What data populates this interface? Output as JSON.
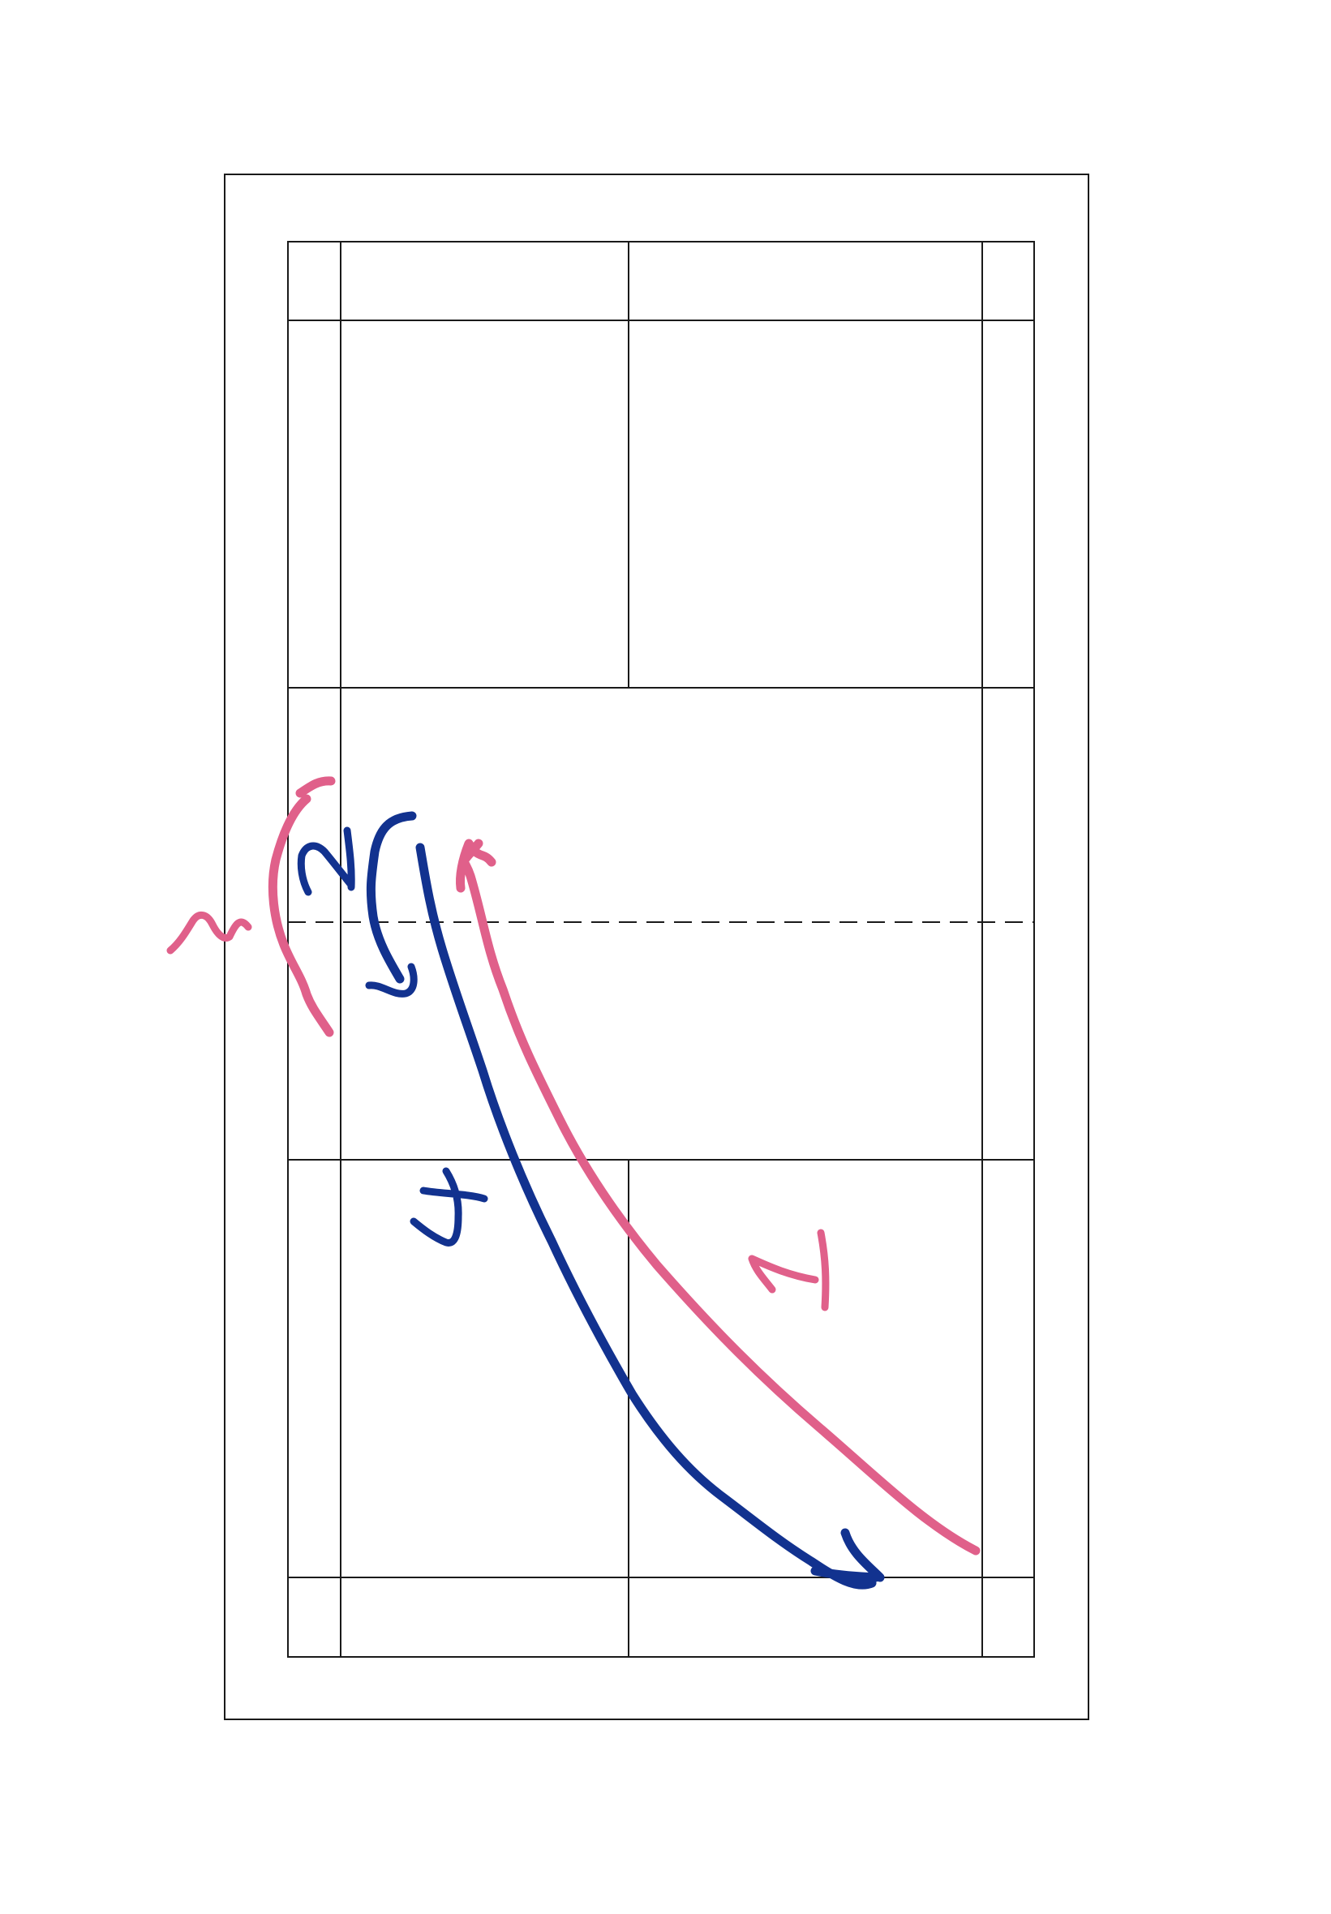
{
  "diagram": {
    "type": "badminton-court-shot-diagram",
    "colors": {
      "background": "#ffffff",
      "court_lines": "#1a1a1a",
      "pink_shot": "#e0608a",
      "blue_shot": "#12328f"
    },
    "shot_labels": {
      "pink_return": "1",
      "pink_net_shot": "3",
      "blue_net_shot": "2",
      "blue_return": "4"
    }
  }
}
